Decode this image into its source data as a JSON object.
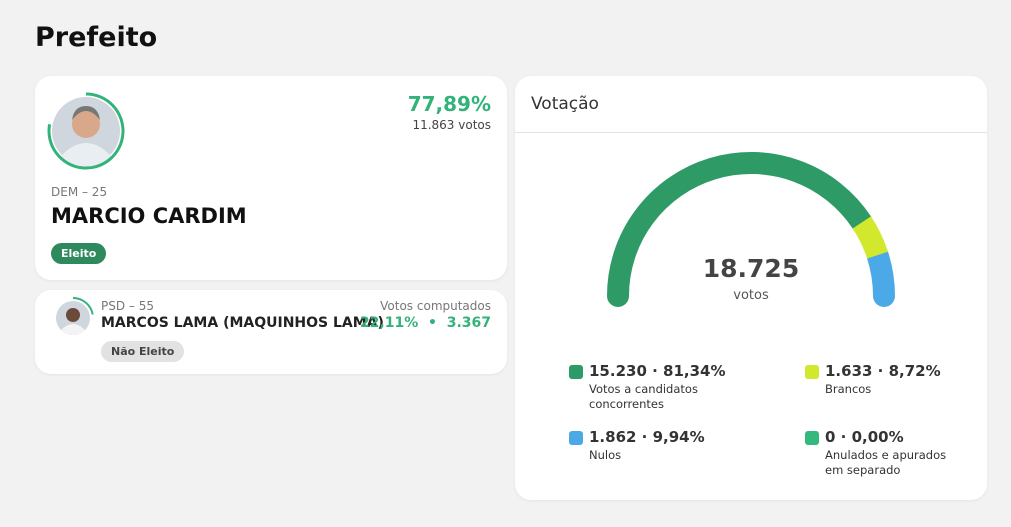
{
  "page": {
    "title": "Prefeito"
  },
  "candidates": [
    {
      "party": "DEM – 25",
      "name": "MARCIO CARDIM",
      "share": {
        "value": 77.89,
        "label": "77,89%"
      },
      "votes": "11.863 votos",
      "status": "Eleito"
    },
    {
      "party": "PSD – 55",
      "name": "MARCOS LAMA (MAQUINHOS LAMA)",
      "votes_caption": "Votos computados",
      "share": {
        "value": 22.11,
        "label": "22,11%"
      },
      "votes": "3.367",
      "status": "Não Eleito"
    }
  ],
  "chart_data": {
    "type": "gauge",
    "title": "Votação",
    "total": "18.725",
    "total_unit": "votos",
    "categories": [
      "Votos a candidatos concorrentes",
      "Brancos",
      "Nulos",
      "Anulados e apurados em separado"
    ],
    "values": [
      81.34,
      8.72,
      9.94,
      0
    ],
    "value_labels": [
      "15.230 · 81,34%",
      "1.633 · 8,72%",
      "1.862 · 9,94%",
      "0 · 0,00%"
    ],
    "colors": [
      "#2e9a66",
      "#d2e82c",
      "#4aa9e6",
      "#33b97c"
    ]
  }
}
